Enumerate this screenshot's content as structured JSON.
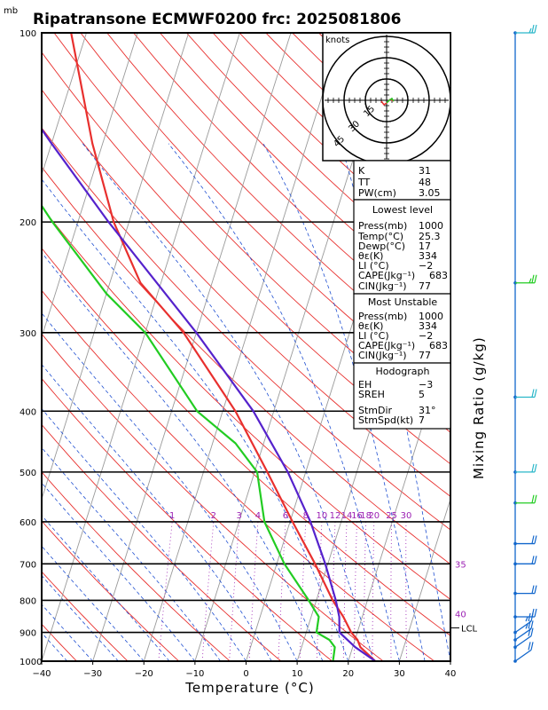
{
  "chart_data": {
    "type": "line",
    "title": "Ripatransone ECMWF0200 frc: 2025081806",
    "pressure_unit": "mb",
    "xlabel": "Temperature (°C)",
    "right_label": "Mixing Ratio (g/kg)",
    "xlim": [
      -40,
      40
    ],
    "plim": [
      1000,
      100
    ],
    "x_ticks": [
      -40,
      -30,
      -20,
      -10,
      0,
      10,
      20,
      30,
      40
    ],
    "p_ticks": [
      100,
      200,
      300,
      400,
      500,
      600,
      700,
      800,
      900,
      1000
    ],
    "mixing_ratio_labels": [
      {
        "label": "1",
        "value": 1
      },
      {
        "label": "2",
        "value": 2
      },
      {
        "label": "3",
        "value": 3
      },
      {
        "label": "4",
        "value": 4
      },
      {
        "label": "6",
        "value": 6
      },
      {
        "label": "8",
        "value": 8
      },
      {
        "label": "10",
        "value": 10
      },
      {
        "label": "12",
        "value": 12
      },
      {
        "label": "14",
        "value": 14
      },
      {
        "label": "16",
        "value": 16
      },
      {
        "label": "18",
        "value": 18
      },
      {
        "label": "20",
        "value": 20
      },
      {
        "label": "25",
        "value": 25
      },
      {
        "label": "30",
        "value": 30
      }
    ],
    "side_labels": [
      {
        "label": "35",
        "p": 700
      },
      {
        "label": "40",
        "p": 840
      },
      {
        "label": "LCL",
        "p": 885
      }
    ],
    "series": [
      {
        "color": "#e8302e",
        "points": [
          {
            "p": 1000,
            "t": 25.3
          },
          {
            "p": 950,
            "t": 21.5
          },
          {
            "p": 925,
            "t": 20.5
          },
          {
            "p": 900,
            "t": 18.8
          },
          {
            "p": 850,
            "t": 16.3
          },
          {
            "p": 800,
            "t": 13.2
          },
          {
            "p": 700,
            "t": 7.5
          },
          {
            "p": 600,
            "t": 0.5
          },
          {
            "p": 500,
            "t": -7.5
          },
          {
            "p": 400,
            "t": -17.5
          },
          {
            "p": 300,
            "t": -32.5
          },
          {
            "p": 250,
            "t": -44
          },
          {
            "p": 200,
            "t": -53
          },
          {
            "p": 150,
            "t": -62
          },
          {
            "p": 100,
            "t": -73
          }
        ]
      },
      {
        "color": "#22cc22",
        "points": [
          {
            "p": 1000,
            "t": 17
          },
          {
            "p": 950,
            "t": 16.5
          },
          {
            "p": 925,
            "t": 15
          },
          {
            "p": 900,
            "t": 12
          },
          {
            "p": 850,
            "t": 11.5
          },
          {
            "p": 800,
            "t": 8.5
          },
          {
            "p": 700,
            "t": 1.5
          },
          {
            "p": 600,
            "t": -5
          },
          {
            "p": 500,
            "t": -9.5
          },
          {
            "p": 450,
            "t": -15.5
          },
          {
            "p": 400,
            "t": -25
          },
          {
            "p": 300,
            "t": -40
          },
          {
            "p": 260,
            "t": -50
          },
          {
            "p": 200,
            "t": -65
          },
          {
            "p": 150,
            "t": -80
          },
          {
            "p": 100,
            "t": -98
          }
        ]
      },
      {
        "color": "#5522cc",
        "points": [
          {
            "p": 1000,
            "t": 25.3
          },
          {
            "p": 950,
            "t": 20.5
          },
          {
            "p": 900,
            "t": 16.5
          },
          {
            "p": 850,
            "t": 15.5
          },
          {
            "p": 800,
            "t": 13.8
          },
          {
            "p": 700,
            "t": 9.5
          },
          {
            "p": 600,
            "t": 4
          },
          {
            "p": 500,
            "t": -3.5
          },
          {
            "p": 400,
            "t": -14
          },
          {
            "p": 300,
            "t": -30
          },
          {
            "p": 200,
            "t": -54
          },
          {
            "p": 150,
            "t": -70
          },
          {
            "p": 120,
            "t": -82
          }
        ]
      }
    ],
    "hodograph": {
      "unit_label": "knots",
      "ring_labels": [
        "15",
        "30",
        "45"
      ]
    },
    "wind_barbs_right": [
      {
        "p": 100,
        "color": "#2ab7c9",
        "kt": 15
      },
      {
        "p": 250,
        "color": "#22cc22",
        "kt": 15
      },
      {
        "p": 380,
        "color": "#2ab7c9",
        "kt": 10
      },
      {
        "p": 500,
        "color": "#2ab7c9",
        "kt": 10
      },
      {
        "p": 560,
        "color": "#22cc22",
        "kt": 10
      },
      {
        "p": 650,
        "color": "#1166cc",
        "kt": 10
      },
      {
        "p": 700,
        "color": "#1166cc",
        "kt": 10
      },
      {
        "p": 780,
        "color": "#1166cc",
        "kt": 10
      },
      {
        "p": 850,
        "color": "#1166cc",
        "kt": 10
      },
      {
        "p": 900,
        "color": "#1166cc",
        "kt": 15
      },
      {
        "p": 925,
        "color": "#1166cc",
        "kt": 15
      },
      {
        "p": 950,
        "color": "#1166cc",
        "kt": 10
      },
      {
        "p": 1000,
        "color": "#1166cc",
        "kt": 10
      }
    ]
  },
  "indices": {
    "block1": [
      {
        "label": "K",
        "value": "31"
      },
      {
        "label": "TT",
        "value": "48"
      },
      {
        "label": "PW(cm)",
        "value": "3.05"
      }
    ],
    "lowest_level": {
      "header": "Lowest level",
      "rows": [
        {
          "label": "Press(mb)",
          "value": "1000"
        },
        {
          "label": "Temp(°C)",
          "value": "25.3"
        },
        {
          "label": "Dewp(°C)",
          "value": "17"
        },
        {
          "label": "θε(K)",
          "value": "334"
        },
        {
          "label": "LI (°C)",
          "value": "−2"
        },
        {
          "label": "CAPE(Jkg⁻¹)",
          "value": "683"
        },
        {
          "label": "CIN(Jkg⁻¹)",
          "value": "77"
        }
      ]
    },
    "most_unstable": {
      "header": "Most Unstable",
      "rows": [
        {
          "label": "Press(mb)",
          "value": "1000"
        },
        {
          "label": "θε(K)",
          "value": "334"
        },
        {
          "label": "LI (°C)",
          "value": "−2"
        },
        {
          "label": "CAPE(Jkg⁻¹)",
          "value": "683"
        },
        {
          "label": "CIN(Jkg⁻¹)",
          "value": "77"
        }
      ]
    },
    "hodograph_block": {
      "header": "Hodograph",
      "rows": [
        {
          "label": "EH",
          "value": "−3"
        },
        {
          "label": "SREH",
          "value": "5"
        },
        {
          "label": "StmDir",
          "value": "31°"
        },
        {
          "label": "StmSpd(kt)",
          "value": "7"
        }
      ]
    }
  }
}
